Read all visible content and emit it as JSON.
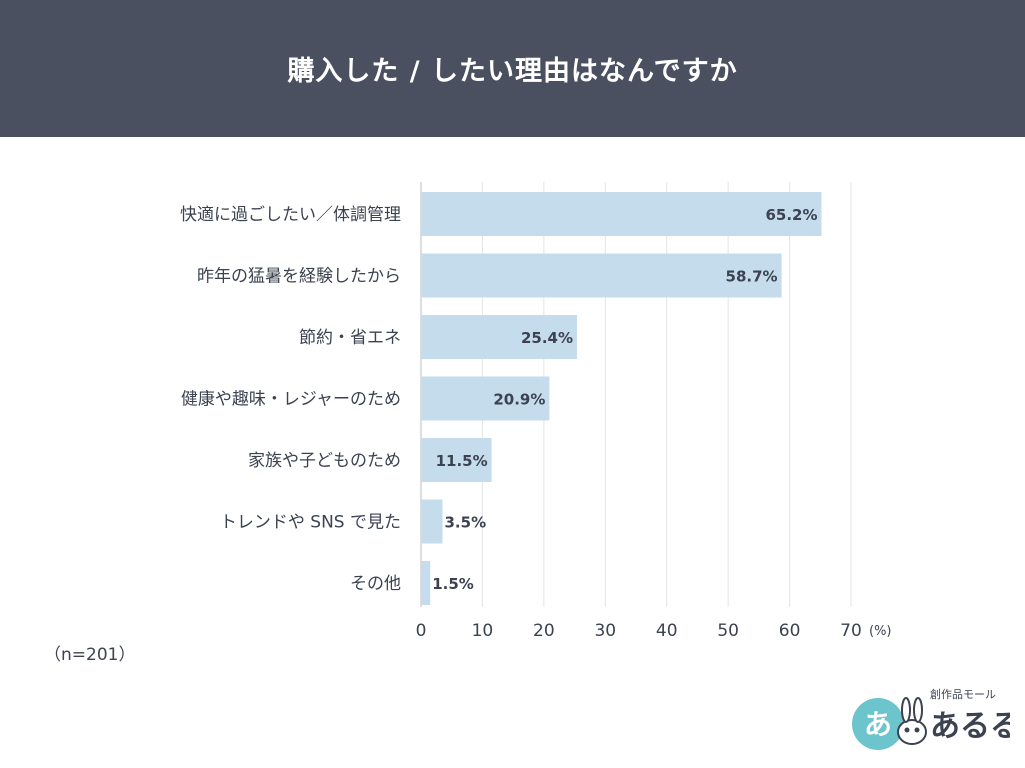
{
  "header": {
    "title": "購入した / したい理由はなんですか"
  },
  "note": "（n=201）",
  "logo": {
    "subtitle": "創作品モール",
    "name": "あるる",
    "badge": "あ"
  },
  "chart_data": {
    "type": "bar",
    "orientation": "horizontal",
    "title": "購入した / したい理由はなんですか",
    "categories": [
      "快適に過ごしたい／体調管理",
      "昨年の猛暑を経験したから",
      "節約・省エネ",
      "健康や趣味・レジャーのため",
      "家族や子どものため",
      "トレンドや SNS で見た",
      "その他"
    ],
    "values": [
      65.2,
      58.7,
      25.4,
      20.9,
      11.5,
      3.5,
      1.5
    ],
    "value_labels": [
      "65.2%",
      "58.7%",
      "25.4%",
      "20.9%",
      "11.5%",
      "3.5%",
      "1.5%"
    ],
    "xlim": [
      0,
      70
    ],
    "xticks": [
      0,
      10,
      20,
      30,
      40,
      50,
      60,
      70
    ],
    "xunit": "(%)",
    "grid": true,
    "bar_color": "#c5dcec"
  }
}
